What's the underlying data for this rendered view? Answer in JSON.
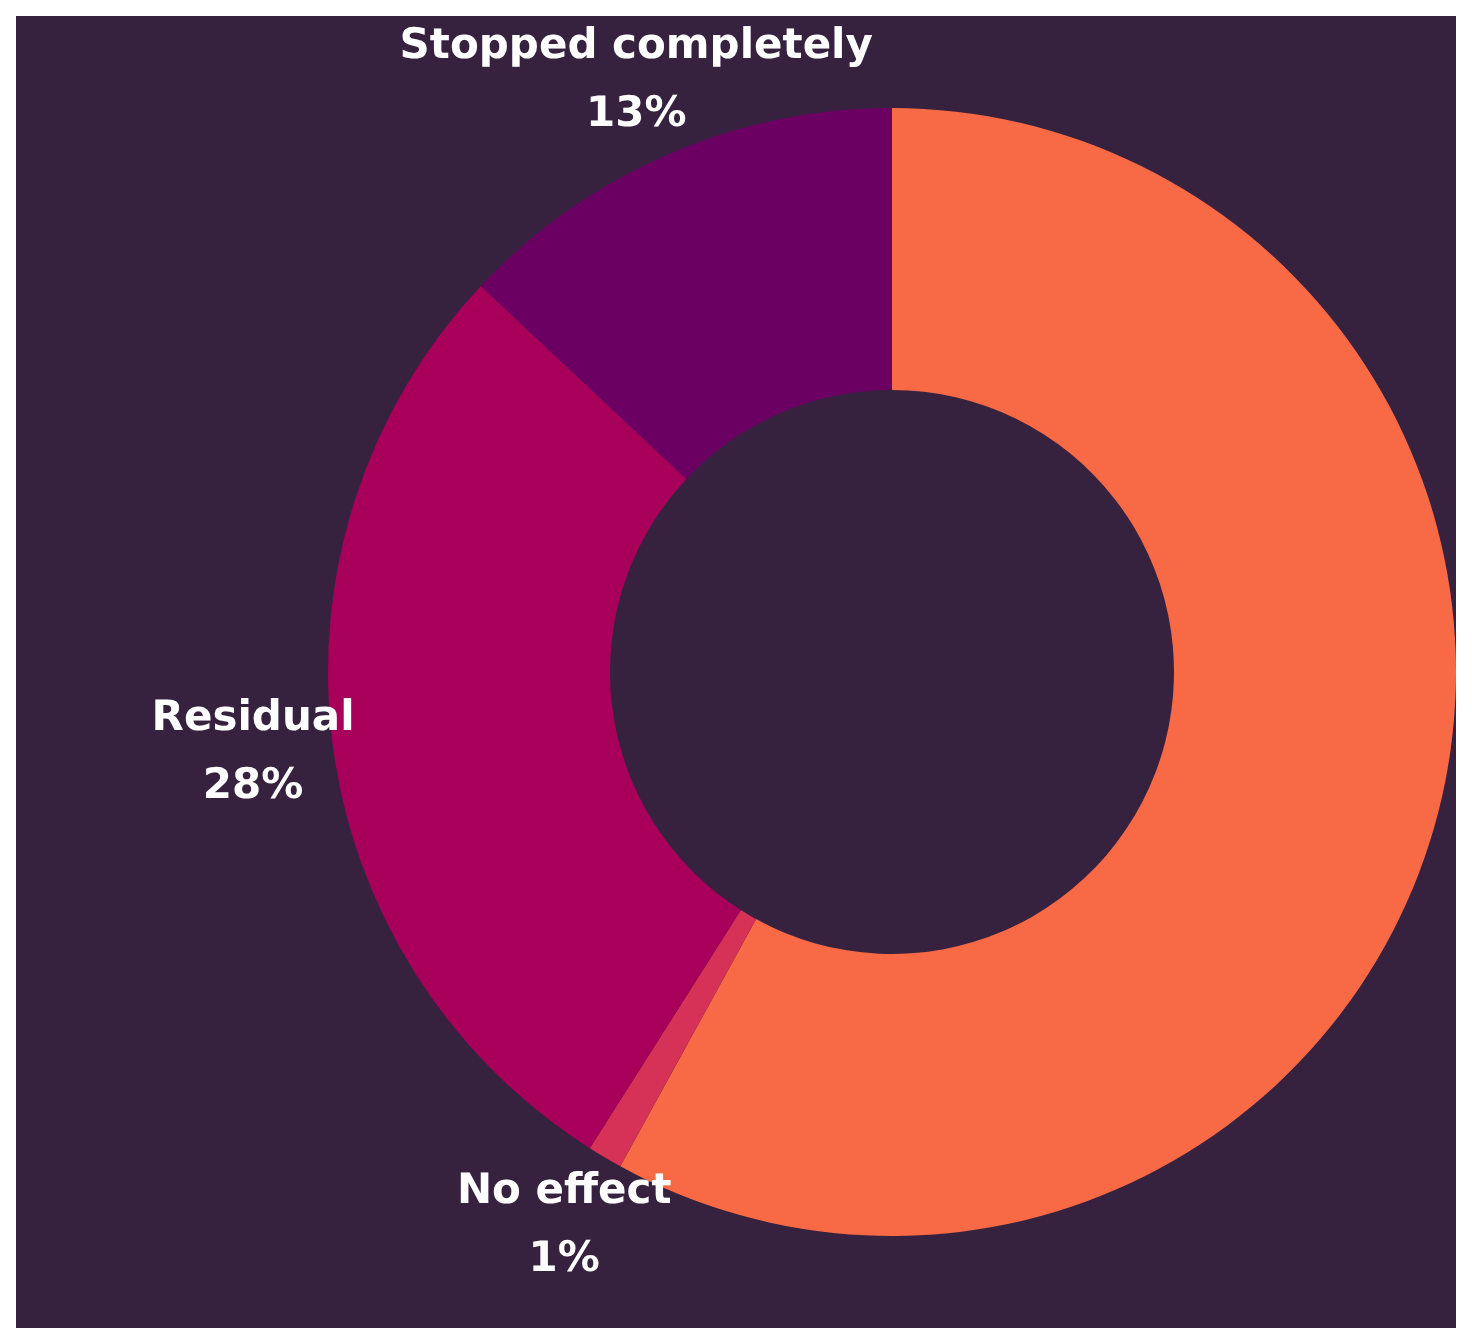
{
  "chart_data": {
    "type": "donut",
    "categories": [
      null,
      "No effect",
      "Residual",
      "Stopped completely"
    ],
    "values": [
      58,
      1,
      28,
      13
    ],
    "colors": [
      "#f76a45",
      "#d63156",
      "#a8005a",
      "#6b0062"
    ],
    "value_labels": [
      null,
      "1%",
      "28%",
      "13%"
    ],
    "legend": false
  }
}
